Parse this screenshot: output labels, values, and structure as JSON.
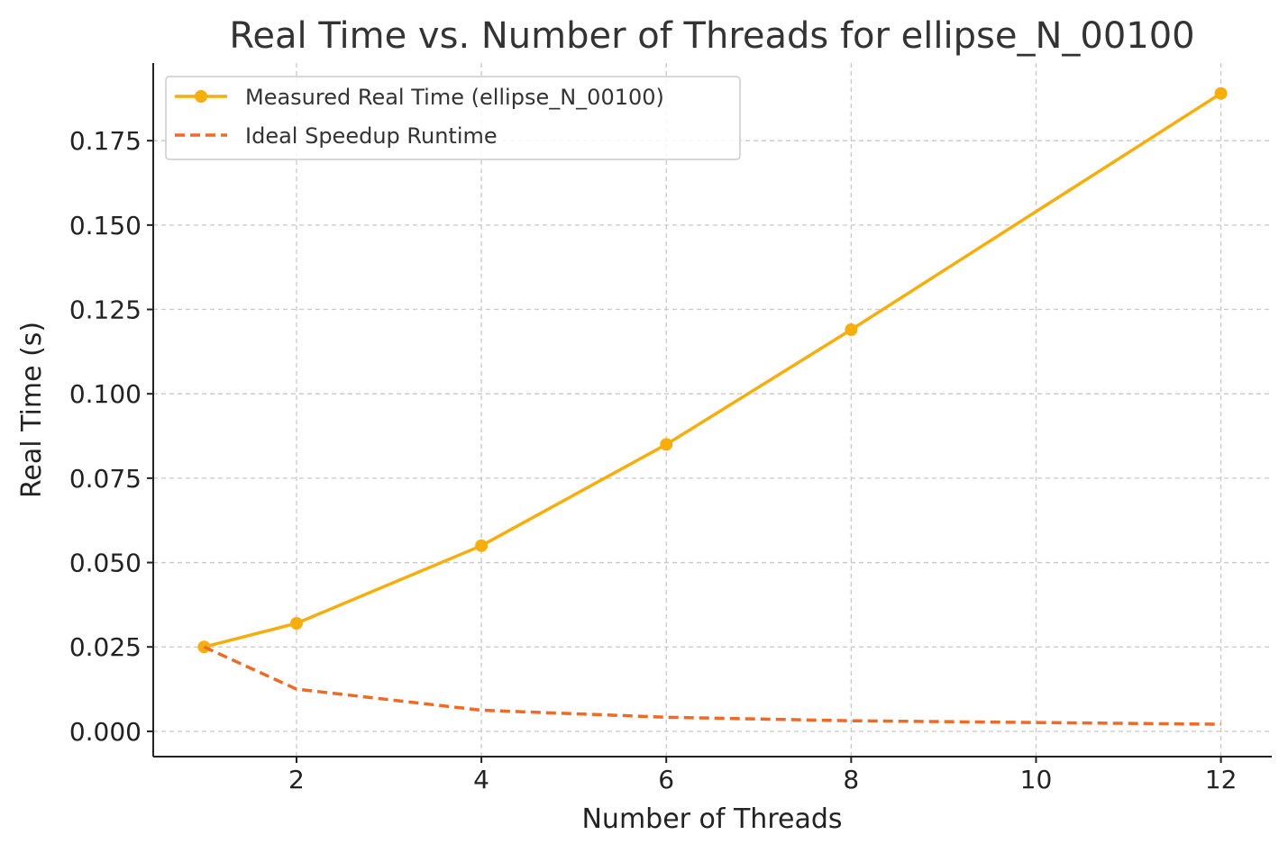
{
  "chart_data": {
    "type": "line",
    "title": "Real Time vs. Number of Threads for ellipse_N_00100",
    "xlabel": "Number of Threads",
    "ylabel": "Real Time (s)",
    "xlim": [
      0.45,
      12.55
    ],
    "ylim": [
      -0.0075,
      0.198
    ],
    "xticks": [
      2,
      4,
      6,
      8,
      10,
      12
    ],
    "xtick_labels": [
      "2",
      "4",
      "6",
      "8",
      "10",
      "12"
    ],
    "yticks": [
      0.0,
      0.025,
      0.05,
      0.075,
      0.1,
      0.125,
      0.15,
      0.175
    ],
    "ytick_labels": [
      "0.000",
      "0.025",
      "0.050",
      "0.075",
      "0.100",
      "0.125",
      "0.150",
      "0.175"
    ],
    "grid": true,
    "legend_position": "top-left",
    "series": [
      {
        "name": "Measured Real Time (ellipse_N_00100)",
        "style": "solid",
        "marker": "circle",
        "color": "#F5AE0C",
        "x": [
          1,
          2,
          4,
          6,
          8,
          12
        ],
        "y": [
          0.025,
          0.032,
          0.055,
          0.085,
          0.119,
          0.189
        ]
      },
      {
        "name": "Ideal Speedup Runtime",
        "style": "dashed",
        "marker": "none",
        "color": "#EE6A26",
        "x": [
          1,
          2,
          4,
          6,
          8,
          12
        ],
        "y": [
          0.025,
          0.0125,
          0.00625,
          0.00417,
          0.003125,
          0.00208
        ]
      }
    ]
  }
}
